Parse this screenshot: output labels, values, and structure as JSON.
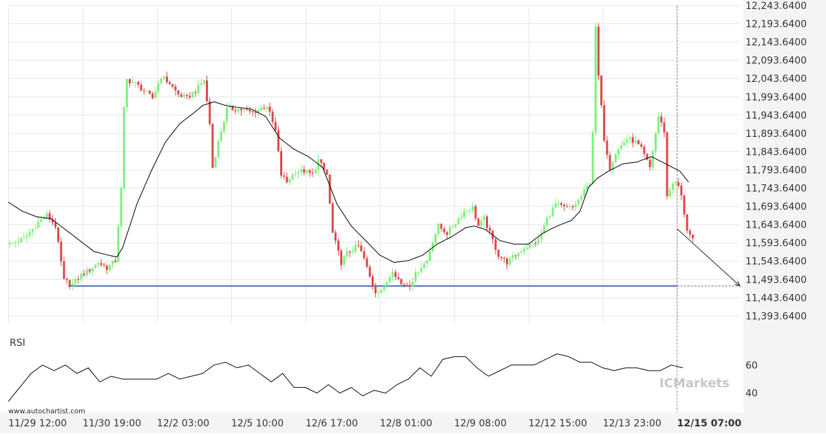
{
  "colors": {
    "bull": "#7cf07c",
    "bear": "#dd4646",
    "moving_average": "#111111",
    "support_line": "#4a6fb5",
    "grid": "#e6e6e6",
    "axis_band": "#f2f2f2",
    "rsi_line": "#000000",
    "watermark": "#c7c7c7"
  },
  "watermark_site": "www.autochartist.com",
  "brand": "ICMarkets",
  "chart_data": {
    "type": "candlestick",
    "instrument": "",
    "price_axis": {
      "ticks": [
        "12,243.6400",
        "12,193.6400",
        "12,143.6400",
        "12,093.6400",
        "12,043.6400",
        "11,993.6400",
        "11,943.6400",
        "11,893.6400",
        "11,843.6400",
        "11,793.6400",
        "11,743.6400",
        "11,693.6400",
        "11,643.6400",
        "11,593.6400",
        "11,543.6400",
        "11,493.6400",
        "11,443.6400",
        "11,393.6400"
      ],
      "tick_values": [
        12243.64,
        12193.64,
        12143.64,
        12093.64,
        12043.64,
        11993.64,
        11943.64,
        11893.64,
        11843.64,
        11793.64,
        11743.64,
        11693.64,
        11643.64,
        11593.64,
        11543.64,
        11493.64,
        11443.64,
        11393.64
      ],
      "ylim": [
        11373.64,
        12243.64
      ]
    },
    "time_axis": {
      "labels": [
        "11/29 12:00",
        "11/30 19:00",
        "12/2 03:00",
        "12/5 10:00",
        "12/6 17:00",
        "12/8 01:00",
        "12/9 08:00",
        "12/12 15:00",
        "12/13 23:00",
        "12/15 07:00"
      ],
      "label_bar_index": [
        0,
        26,
        52,
        78,
        104,
        130,
        156,
        182,
        208,
        234
      ],
      "highlighted": "12/15 07:00",
      "total_bars": 256
    },
    "support_level": 11475.64,
    "support_start_bar": 21,
    "forecast": {
      "from_bar": 234,
      "from_price": 11632,
      "to_bar": 256,
      "to_price": 11475.64
    },
    "price_keypoints": [
      [
        0,
        11590
      ],
      [
        5,
        11605
      ],
      [
        10,
        11650
      ],
      [
        13,
        11670
      ],
      [
        16,
        11640
      ],
      [
        19,
        11490
      ],
      [
        22,
        11480
      ],
      [
        25,
        11505
      ],
      [
        28,
        11520
      ],
      [
        31,
        11540
      ],
      [
        34,
        11525
      ],
      [
        37,
        11545
      ],
      [
        39,
        11740
      ],
      [
        40,
        11960
      ],
      [
        41,
        12040
      ],
      [
        44,
        12030
      ],
      [
        47,
        12010
      ],
      [
        50,
        11990
      ],
      [
        53,
        12050
      ],
      [
        56,
        12030
      ],
      [
        59,
        12000
      ],
      [
        62,
        11990
      ],
      [
        65,
        12010
      ],
      [
        68,
        12040
      ],
      [
        70,
        11920
      ],
      [
        71,
        11800
      ],
      [
        73,
        11870
      ],
      [
        76,
        11960
      ],
      [
        80,
        11960
      ],
      [
        85,
        11950
      ],
      [
        90,
        11970
      ],
      [
        93,
        11900
      ],
      [
        95,
        11780
      ],
      [
        97,
        11760
      ],
      [
        100,
        11790
      ],
      [
        103,
        11790
      ],
      [
        106,
        11780
      ],
      [
        108,
        11820
      ],
      [
        111,
        11780
      ],
      [
        113,
        11620
      ],
      [
        116,
        11540
      ],
      [
        118,
        11565
      ],
      [
        122,
        11585
      ],
      [
        124,
        11550
      ],
      [
        126,
        11500
      ],
      [
        128,
        11460
      ],
      [
        131,
        11470
      ],
      [
        134,
        11520
      ],
      [
        137,
        11480
      ],
      [
        140,
        11480
      ],
      [
        143,
        11520
      ],
      [
        146,
        11545
      ],
      [
        148,
        11600
      ],
      [
        150,
        11640
      ],
      [
        153,
        11620
      ],
      [
        156,
        11650
      ],
      [
        159,
        11680
      ],
      [
        162,
        11690
      ],
      [
        164,
        11640
      ],
      [
        166,
        11660
      ],
      [
        168,
        11620
      ],
      [
        171,
        11560
      ],
      [
        174,
        11540
      ],
      [
        177,
        11560
      ],
      [
        180,
        11580
      ],
      [
        183,
        11590
      ],
      [
        185,
        11600
      ],
      [
        188,
        11660
      ],
      [
        191,
        11700
      ],
      [
        194,
        11690
      ],
      [
        197,
        11690
      ],
      [
        200,
        11720
      ],
      [
        203,
        11760
      ],
      [
        204,
        11900
      ],
      [
        205,
        12180
      ],
      [
        206,
        12050
      ],
      [
        208,
        11880
      ],
      [
        210,
        11800
      ],
      [
        212,
        11840
      ],
      [
        214,
        11860
      ],
      [
        216,
        11880
      ],
      [
        219,
        11870
      ],
      [
        221,
        11850
      ],
      [
        224,
        11800
      ],
      [
        227,
        11940
      ],
      [
        229,
        11900
      ],
      [
        230,
        11720
      ],
      [
        232,
        11760
      ],
      [
        234,
        11750
      ],
      [
        235,
        11720
      ],
      [
        237,
        11630
      ],
      [
        239,
        11600
      ]
    ],
    "moving_average_keypoints": [
      [
        0,
        11705
      ],
      [
        5,
        11680
      ],
      [
        10,
        11665
      ],
      [
        15,
        11660
      ],
      [
        20,
        11630
      ],
      [
        25,
        11600
      ],
      [
        30,
        11570
      ],
      [
        35,
        11560
      ],
      [
        38,
        11555
      ],
      [
        40,
        11580
      ],
      [
        45,
        11700
      ],
      [
        50,
        11790
      ],
      [
        55,
        11870
      ],
      [
        60,
        11920
      ],
      [
        65,
        11950
      ],
      [
        68,
        11970
      ],
      [
        72,
        11980
      ],
      [
        76,
        11970
      ],
      [
        80,
        11965
      ],
      [
        85,
        11960
      ],
      [
        90,
        11940
      ],
      [
        95,
        11880
      ],
      [
        100,
        11850
      ],
      [
        105,
        11830
      ],
      [
        110,
        11800
      ],
      [
        115,
        11700
      ],
      [
        120,
        11640
      ],
      [
        125,
        11600
      ],
      [
        130,
        11560
      ],
      [
        135,
        11540
      ],
      [
        140,
        11545
      ],
      [
        145,
        11560
      ],
      [
        150,
        11590
      ],
      [
        155,
        11610
      ],
      [
        160,
        11635
      ],
      [
        163,
        11640
      ],
      [
        167,
        11630
      ],
      [
        172,
        11600
      ],
      [
        177,
        11590
      ],
      [
        182,
        11590
      ],
      [
        187,
        11620
      ],
      [
        192,
        11640
      ],
      [
        197,
        11655
      ],
      [
        200,
        11680
      ],
      [
        203,
        11745
      ],
      [
        206,
        11770
      ],
      [
        210,
        11790
      ],
      [
        215,
        11810
      ],
      [
        220,
        11815
      ],
      [
        225,
        11830
      ],
      [
        230,
        11810
      ],
      [
        235,
        11790
      ],
      [
        238,
        11760
      ]
    ],
    "rsi": {
      "label": "RSI",
      "ticks": [
        "60",
        "40"
      ],
      "tick_values": [
        60,
        40
      ],
      "ylim": [
        30,
        80
      ],
      "keypoints": [
        [
          0,
          34
        ],
        [
          4,
          44
        ],
        [
          8,
          54
        ],
        [
          12,
          60
        ],
        [
          16,
          56
        ],
        [
          20,
          60
        ],
        [
          24,
          54
        ],
        [
          28,
          58
        ],
        [
          32,
          48
        ],
        [
          36,
          52
        ],
        [
          40,
          50
        ],
        [
          44,
          50
        ],
        [
          48,
          50
        ],
        [
          52,
          50
        ],
        [
          56,
          54
        ],
        [
          60,
          50
        ],
        [
          64,
          52
        ],
        [
          68,
          54
        ],
        [
          72,
          60
        ],
        [
          76,
          62
        ],
        [
          80,
          58
        ],
        [
          84,
          60
        ],
        [
          88,
          54
        ],
        [
          92,
          48
        ],
        [
          96,
          54
        ],
        [
          100,
          44
        ],
        [
          104,
          44
        ],
        [
          108,
          40
        ],
        [
          112,
          46
        ],
        [
          116,
          40
        ],
        [
          120,
          44
        ],
        [
          124,
          38
        ],
        [
          128,
          42
        ],
        [
          132,
          40
        ],
        [
          136,
          46
        ],
        [
          140,
          50
        ],
        [
          144,
          58
        ],
        [
          148,
          52
        ],
        [
          152,
          64
        ],
        [
          156,
          66
        ],
        [
          160,
          66
        ],
        [
          164,
          58
        ],
        [
          168,
          52
        ],
        [
          172,
          56
        ],
        [
          176,
          60
        ],
        [
          180,
          60
        ],
        [
          184,
          60
        ],
        [
          188,
          64
        ],
        [
          192,
          68
        ],
        [
          196,
          66
        ],
        [
          200,
          62
        ],
        [
          204,
          62
        ],
        [
          208,
          58
        ],
        [
          212,
          56
        ],
        [
          216,
          58
        ],
        [
          220,
          58
        ],
        [
          224,
          56
        ],
        [
          228,
          56
        ],
        [
          232,
          60
        ],
        [
          236,
          58
        ],
        [
          240,
          54
        ],
        [
          244,
          62
        ],
        [
          248,
          56
        ],
        [
          252,
          60
        ],
        [
          256,
          60
        ]
      ]
    },
    "grid": true
  }
}
